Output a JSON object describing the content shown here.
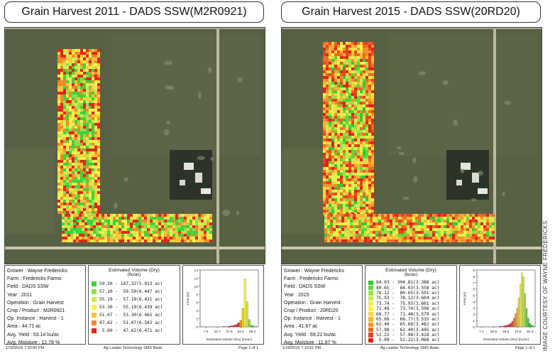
{
  "courtesy": "IMAGE COURTESY OF WAYNE FREDERICKS",
  "panels": [
    {
      "title": "Grain Harvest 2011 - DADS SSW(M2R0921)",
      "info": {
        "grower": "Grower : Wayne Fredericks",
        "farm": "Farm : Fredericks Farms",
        "field": "Field : DADS SSW",
        "year": "Year : 2011",
        "operation": "Operation : Grain Harvest",
        "crop": "Crop / Product : M2R0921",
        "op_instance": "Op. Instance : Harvest - 1",
        "area": "Area : 44.71 ac",
        "avg_yield": "Avg. Yield : 53.14 bu/ac",
        "avg_moisture": "Avg. Moisture : 12.78 %"
      },
      "legend": {
        "title": "Estimated Volume (Dry)",
        "unit": "(bu/ac)",
        "rows": [
          {
            "label": "59.50 - 187.32(5.913 ac)",
            "color": "#3fd23a"
          },
          {
            "label": "57.10 -  59.50(6.447 ac)",
            "color": "#8fe04a"
          },
          {
            "label": "55.19 -  57.10(6.431 ac)",
            "color": "#d2ec4e"
          },
          {
            "label": "53.30 -  55.19(6.439 ac)",
            "color": "#f6f24a"
          },
          {
            "label": "51.07 -  53.30(6.465 ac)",
            "color": "#f9c83c"
          },
          {
            "label": "47.62 -  51.07(6.542 ac)",
            "color": "#f38a2c"
          },
          {
            "label": " 5.60 -  47.62(6.471 ac)",
            "color": "#e2261e"
          }
        ]
      },
      "histogram": {
        "ylabel": "Area (ac)",
        "xlabel": "Estimated Volume (Dry) (bu/ac)",
        "yticks": [
          "14",
          "12",
          "10",
          "8",
          "6",
          "4",
          "2",
          "0"
        ],
        "xticks": [
          "7.5",
          "22.7",
          "37.9",
          "53.1",
          "68.4"
        ],
        "xlim": [
          0,
          76
        ],
        "ylim": [
          0,
          14
        ],
        "bars": [
          0.1,
          0.1,
          0.1,
          0.2,
          0.3,
          0.4,
          0.6,
          1.0,
          1.6,
          4.5,
          11.8,
          6.2,
          1.8,
          0.4,
          0.2,
          0.1
        ],
        "bar_colors": [
          "#e2261e",
          "#e2261e",
          "#e2261e",
          "#e2261e",
          "#e2261e",
          "#e2261e",
          "#e2261e",
          "#e2261e",
          "#f38a2c",
          "#f9c83c",
          "#f6f24a",
          "#d2ec4e",
          "#8fe04a",
          "#3fd23a",
          "#3fd23a",
          "#3fd23a"
        ]
      },
      "footer": {
        "left": "1/19/2016 7:30:00 PM",
        "center": "Ag Leader Technology SMS Basic",
        "right": "Page 1 of 1"
      }
    },
    {
      "title": "Grain Harvest 2015 - DADS SSW(20RD20)",
      "info": {
        "grower": "Grower : Wayne Fredericks",
        "farm": "Farm : Fredericks Farms",
        "field": "Field : DADS SSW",
        "year": "Year : 2015",
        "operation": "Operation : Grain Harvest",
        "crop": "Crop / Product : 20RD20",
        "op_instance": "Op. Instance : Harvest - 1",
        "area": "Area : 41.87 ac",
        "avg_yield": "Avg. Yield : 69.22 bu/ac",
        "avg_moisture": "Avg. Moisture : 11.87 %"
      },
      "legend": {
        "title": "Estimated Volume (Dry)",
        "unit": "(bu/ac)",
        "rows": [
          {
            "label": "84.03 - 304.81(3.388 ac)",
            "color": "#2fcb32"
          },
          {
            "label": "80.65 -  84.03(3.558 ac)",
            "color": "#5cd93c"
          },
          {
            "label": "78.12 -  80.65(3.591 ac)",
            "color": "#95e346"
          },
          {
            "label": "75.93 -  78.12(3.604 ac)",
            "color": "#c6ec4c"
          },
          {
            "label": "73.74 -  75.93(3.601 ac)",
            "color": "#e6f14c"
          },
          {
            "label": "71.48 -  73.74(3.596 ac)",
            "color": "#f7ef48"
          },
          {
            "label": "68.77 -  71.48(3.579 ac)",
            "color": "#f9d640"
          },
          {
            "label": "65.68 -  68.77(3.535 ac)",
            "color": "#f8b636"
          },
          {
            "label": "62.40 -  65.68(3.482 ac)",
            "color": "#f4922e"
          },
          {
            "label": "57.98 -  62.40(3.445 ac)",
            "color": "#ee6a26"
          },
          {
            "label": "52.22 -  57.98(3.418 ac)",
            "color": "#e8441f"
          },
          {
            "label": " 5.09 -  52.22(3.068 ac)",
            "color": "#e0221b"
          }
        ]
      },
      "histogram": {
        "ylabel": "Area (ac)",
        "xlabel": "Estimated Volume (Dry) (bu/ac)",
        "yticks": [
          "9",
          "8",
          "7",
          "6",
          "5",
          "4",
          "3",
          "2",
          "1",
          "0"
        ],
        "xticks": [
          "7.7",
          "28.6",
          "49.6",
          "70.5",
          "91.4"
        ],
        "xlim": [
          0,
          100
        ],
        "ylim": [
          0,
          9
        ],
        "bars": [
          0.1,
          0.1,
          0.1,
          0.2,
          0.2,
          0.3,
          0.4,
          0.6,
          0.9,
          1.4,
          2.1,
          3.0,
          4.6,
          6.8,
          8.6,
          7.9,
          5.3,
          2.9,
          1.4,
          0.6,
          0.3,
          0.2
        ],
        "bar_colors": [
          "#e0221b",
          "#e0221b",
          "#e0221b",
          "#e0221b",
          "#e0221b",
          "#e0221b",
          "#e0221b",
          "#e0221b",
          "#e8441f",
          "#ee6a26",
          "#f4922e",
          "#f8b636",
          "#f9d640",
          "#f7ef48",
          "#e6f14c",
          "#c6ec4c",
          "#95e346",
          "#5cd93c",
          "#2fcb32",
          "#2fcb32",
          "#2fcb32",
          "#2fcb32"
        ]
      },
      "footer": {
        "left": "1/19/2016 7:10:51 PM",
        "center": "Ag Leader Technology SMS Basic",
        "right": "Page 1 of 1"
      }
    }
  ]
}
